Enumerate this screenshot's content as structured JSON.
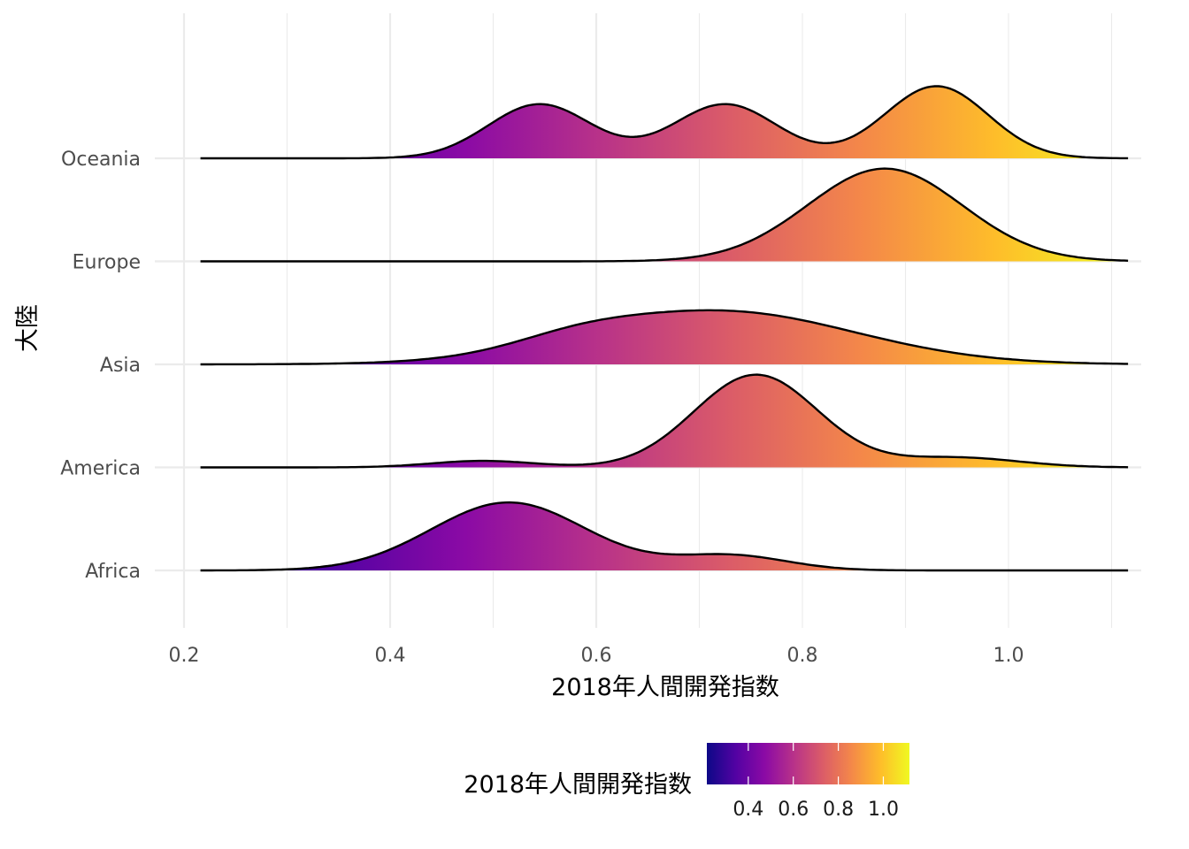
{
  "chart_data": {
    "type": "ridgeline",
    "xlabel": "2018年人間開発指数",
    "ylabel": "大陸",
    "xlim": [
      0.18,
      1.15
    ],
    "x_ticks": [
      0.2,
      0.4,
      0.6,
      0.8,
      1.0
    ],
    "x_tick_labels": [
      "0.2",
      "0.4",
      "0.6",
      "0.8",
      "1.0"
    ],
    "grid": true,
    "categories": [
      "Africa",
      "America",
      "Asia",
      "Europe",
      "Oceania"
    ],
    "density_x_range": [
      0.216,
      1.116
    ],
    "series": [
      {
        "name": "Africa",
        "components": [
          {
            "mu": 0.515,
            "sd": 0.075,
            "w": 0.82
          },
          {
            "mu": 0.73,
            "sd": 0.055,
            "w": 0.18
          }
        ],
        "peak_height": 1.32
      },
      {
        "name": "America",
        "components": [
          {
            "mu": 0.755,
            "sd": 0.06,
            "w": 0.85
          },
          {
            "mu": 0.49,
            "sd": 0.05,
            "w": 0.06
          },
          {
            "mu": 0.95,
            "sd": 0.06,
            "w": 0.09
          }
        ],
        "peak_height": 1.8
      },
      {
        "name": "Asia",
        "components": [
          {
            "mu": 0.72,
            "sd": 0.13,
            "w": 0.85
          },
          {
            "mu": 0.58,
            "sd": 0.06,
            "w": 0.15
          }
        ],
        "peak_height": 1.05
      },
      {
        "name": "Europe",
        "components": [
          {
            "mu": 0.88,
            "sd": 0.075,
            "w": 1.0
          }
        ],
        "peak_height": 1.8
      },
      {
        "name": "Oceania",
        "components": [
          {
            "mu": 0.545,
            "sd": 0.05,
            "w": 0.3
          },
          {
            "mu": 0.725,
            "sd": 0.05,
            "w": 0.3
          },
          {
            "mu": 0.93,
            "sd": 0.05,
            "w": 0.4
          }
        ],
        "peak_height": 1.4
      }
    ],
    "colorscale": {
      "name": "plasma",
      "stops": [
        "#0d0887",
        "#5302a3",
        "#8b0aa5",
        "#b83289",
        "#db5c68",
        "#f48849",
        "#febd2a",
        "#f0f921"
      ],
      "domain": [
        0.216,
        1.116
      ]
    },
    "legend": {
      "title": "2018年人間開発指数",
      "position": "bottom",
      "ticks": [
        0.4,
        0.6,
        0.8,
        1.0
      ],
      "tick_labels": [
        "0.4",
        "0.6",
        "0.8",
        "1.0"
      ]
    }
  }
}
